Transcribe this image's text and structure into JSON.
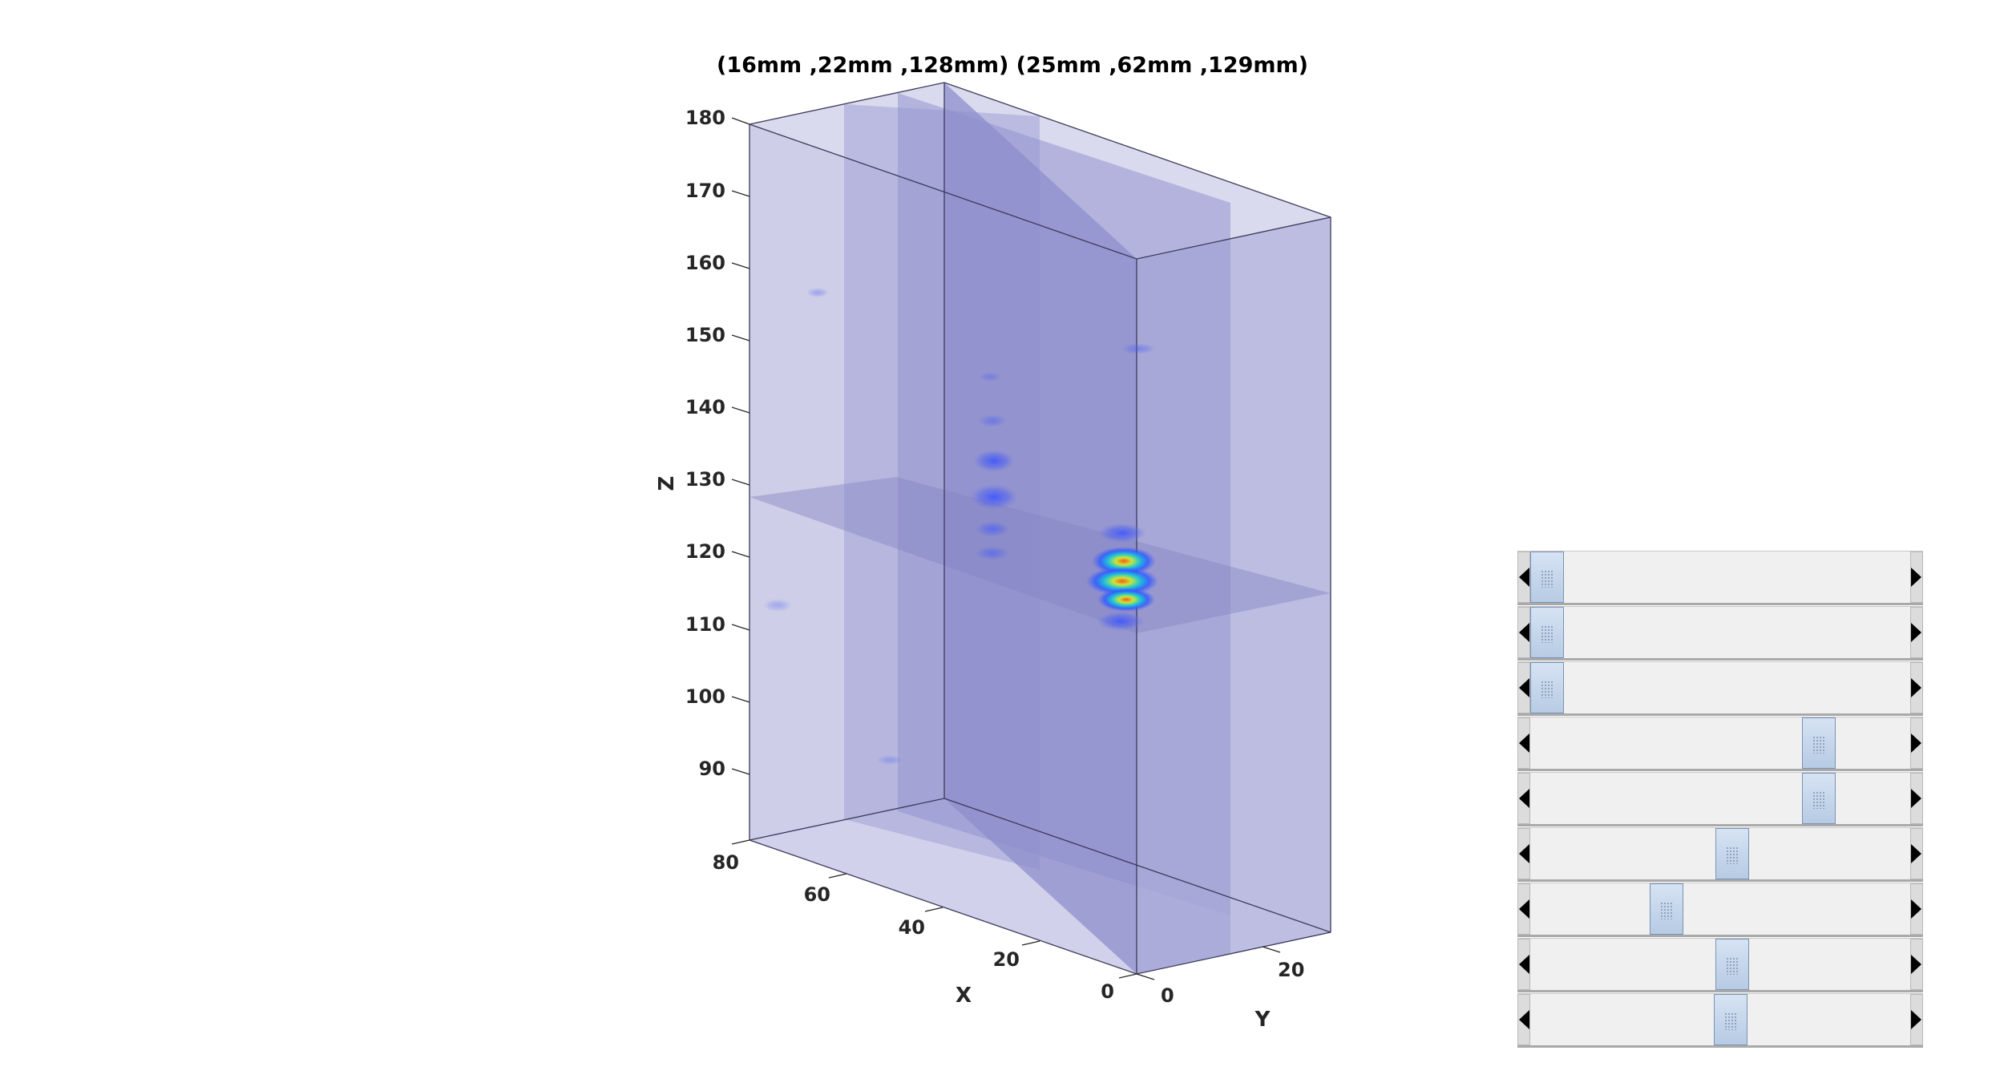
{
  "figure": {
    "title": "(16mm ,22mm ,128mm) (25mm ,62mm ,129mm)",
    "axes": {
      "x_label": "X",
      "y_label": "Y",
      "z_label": "Z",
      "x_ticks": [
        "0",
        "20",
        "40",
        "60",
        "80"
      ],
      "y_ticks": [
        "0",
        "20"
      ],
      "z_ticks": [
        "90",
        "100",
        "110",
        "120",
        "130",
        "140",
        "150",
        "160",
        "170",
        "180"
      ]
    },
    "volume_color": "#8c8cd0",
    "hotspot_colors": [
      "#2b5cff",
      "#19c4d8",
      "#b8e43a",
      "#ff6a1a"
    ]
  },
  "sliders": [
    {
      "name": "slider-1",
      "position_fraction": 0.0
    },
    {
      "name": "slider-2",
      "position_fraction": 0.0
    },
    {
      "name": "slider-3",
      "position_fraction": 0.0
    },
    {
      "name": "slider-4",
      "position_fraction": 0.785
    },
    {
      "name": "slider-5",
      "position_fraction": 0.785
    },
    {
      "name": "slider-6",
      "position_fraction": 0.535
    },
    {
      "name": "slider-7",
      "position_fraction": 0.345
    },
    {
      "name": "slider-8",
      "position_fraction": 0.535
    },
    {
      "name": "slider-9",
      "position_fraction": 0.53
    }
  ]
}
